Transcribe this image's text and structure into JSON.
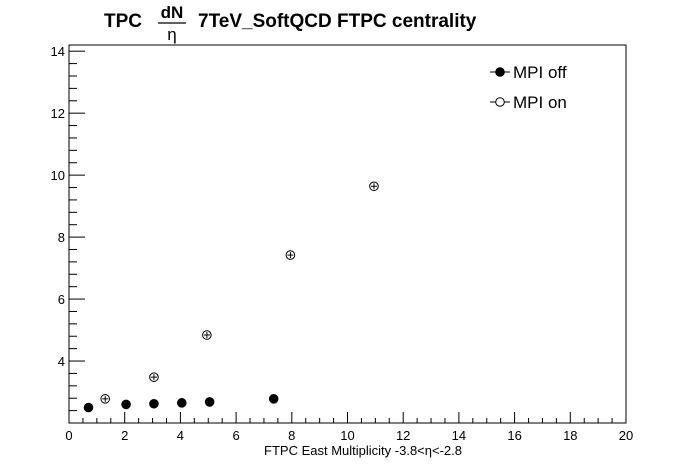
{
  "chart_data": {
    "type": "scatter",
    "title": {
      "prefix": "TPC",
      "frac_num": "dN",
      "frac_den": "η",
      "suffix": "7TeV_SoftQCD FTPC centrality"
    },
    "xlabel": "FTPC East Multiplicity -3.8<η<-2.8",
    "ylabel": "",
    "xlim": [
      0,
      20
    ],
    "ylim": [
      2.0,
      14.2
    ],
    "x_ticks": [
      "0",
      "2",
      "4",
      "6",
      "8",
      "10",
      "12",
      "14",
      "16",
      "18",
      "20"
    ],
    "y_ticks": [
      "4",
      "6",
      "8",
      "10",
      "12",
      "14"
    ],
    "legend_position": "top-right",
    "series": [
      {
        "name": "MPI off",
        "marker": "filled-circle",
        "points": [
          {
            "x": 0.7,
            "y": 2.5
          },
          {
            "x": 2.05,
            "y": 2.6
          },
          {
            "x": 3.05,
            "y": 2.62
          },
          {
            "x": 4.05,
            "y": 2.65
          },
          {
            "x": 5.05,
            "y": 2.68
          },
          {
            "x": 7.35,
            "y": 2.78
          }
        ]
      },
      {
        "name": "MPI on",
        "marker": "open-circle",
        "points": [
          {
            "x": 1.3,
            "y": 2.78
          },
          {
            "x": 3.05,
            "y": 3.48
          },
          {
            "x": 4.95,
            "y": 4.84
          },
          {
            "x": 7.95,
            "y": 7.42
          },
          {
            "x": 10.95,
            "y": 9.64
          }
        ]
      }
    ]
  }
}
